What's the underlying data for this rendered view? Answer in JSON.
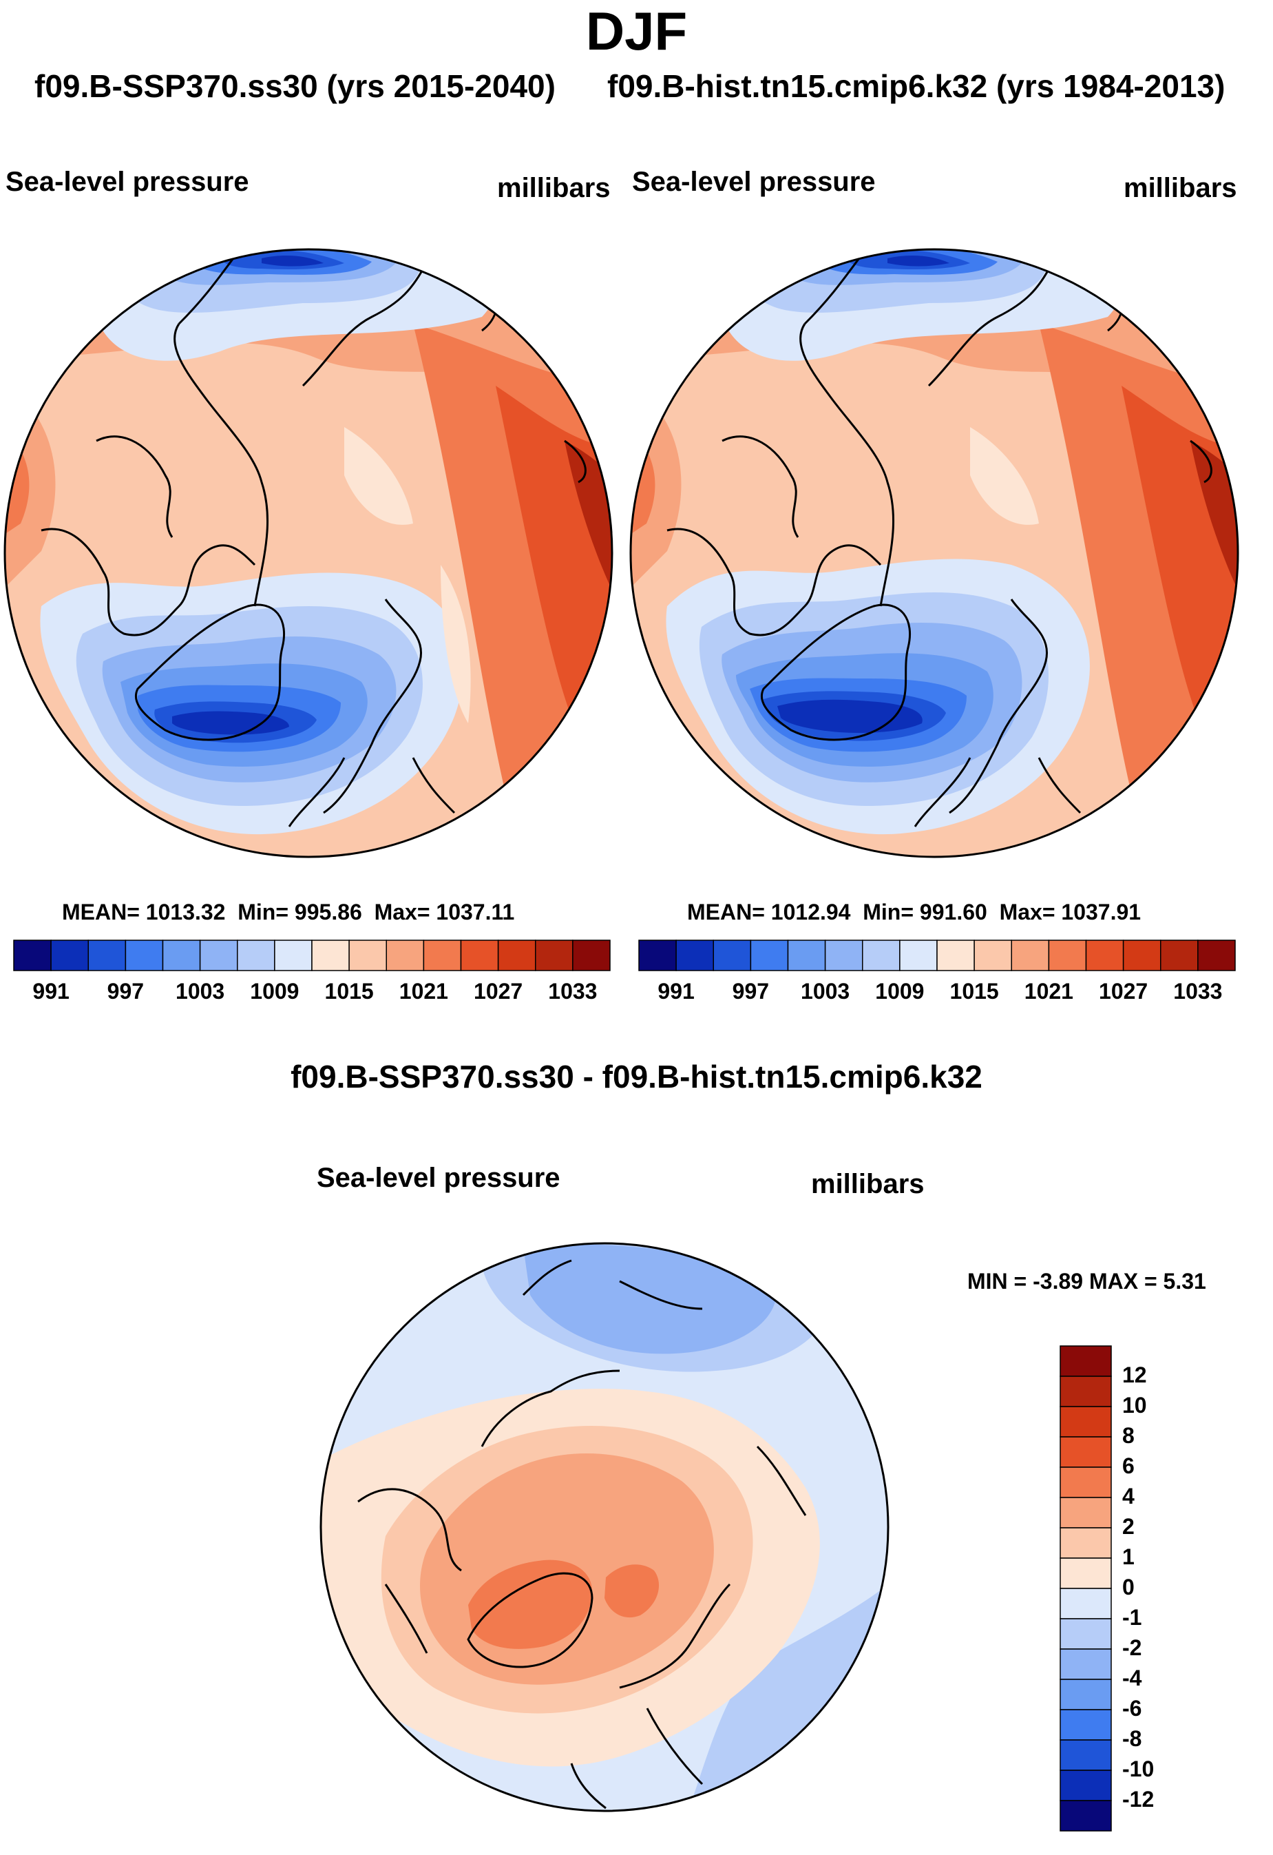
{
  "title": "DJF",
  "headers": {
    "left": "f09.B-SSP370.ss30 (yrs 2015-2040)",
    "right": "f09.B-hist.tn15.cmip6.k32 (yrs 1984-2013)"
  },
  "panels": [
    {
      "variable": "Sea-level pressure",
      "units": "millibars",
      "mean_label": "MEAN=",
      "mean": "1013.32",
      "min_label": "Min=",
      "min": "995.86",
      "max_label": "Max=",
      "max": "1037.11"
    },
    {
      "variable": "Sea-level pressure",
      "units": "millibars",
      "mean_label": "MEAN=",
      "mean": "1012.94",
      "min_label": "Min=",
      "min": "991.60",
      "max_label": "Max=",
      "max": "1037.91"
    }
  ],
  "colorbar_top": {
    "ticks": [
      "991",
      "997",
      "1003",
      "1009",
      "1015",
      "1021",
      "1027",
      "1033"
    ],
    "colors": [
      "#08087a",
      "#0c2fb8",
      "#1f55d8",
      "#3f7cf0",
      "#6a9cf2",
      "#8fb3f5",
      "#b6cdf8",
      "#dce8fb",
      "#fde5d4",
      "#fbc8ab",
      "#f7a47e",
      "#f27a4e",
      "#e65228",
      "#d33a15",
      "#b3260e",
      "#8a0a08"
    ]
  },
  "difference": {
    "title": "f09.B-SSP370.ss30 - f09.B-hist.tn15.cmip6.k32",
    "variable": "Sea-level pressure",
    "units": "millibars",
    "min_label": "MIN =",
    "min": "-3.89",
    "max_label": "MAX =",
    "max": "5.31"
  },
  "colorbar_diff": {
    "ticks": [
      "12",
      "10",
      "8",
      "6",
      "4",
      "2",
      "1",
      "0",
      "-1",
      "-2",
      "-4",
      "-6",
      "-8",
      "-10",
      "-12"
    ],
    "colors": [
      "#8a0a08",
      "#b3260e",
      "#d33a15",
      "#e65228",
      "#f27a4e",
      "#f7a47e",
      "#fbc8ab",
      "#fde5d4",
      "#dce8fb",
      "#b6cdf8",
      "#8fb3f5",
      "#6a9cf2",
      "#3f7cf0",
      "#1f55d8",
      "#0c2fb8",
      "#08087a"
    ]
  },
  "chart_data": [
    {
      "type": "heatmap",
      "title": "Sea-level pressure",
      "subtitle": "f09.B-SSP370.ss30 (yrs 2015-2040)",
      "units": "millibars",
      "mean": 1013.32,
      "min": 995.86,
      "max": 1037.11,
      "levels": [
        991,
        997,
        1003,
        1009,
        1015,
        1021,
        1027,
        1033
      ]
    },
    {
      "type": "heatmap",
      "title": "Sea-level pressure",
      "subtitle": "f09.B-hist.tn15.cmip6.k32 (yrs 1984-2013)",
      "units": "millibars",
      "mean": 1012.94,
      "min": 991.6,
      "max": 1037.91,
      "levels": [
        991,
        997,
        1003,
        1009,
        1015,
        1021,
        1027,
        1033
      ]
    },
    {
      "type": "heatmap",
      "title": "f09.B-SSP370.ss30 - f09.B-hist.tn15.cmip6.k32",
      "units": "millibars",
      "min": -3.89,
      "max": 5.31,
      "levels": [
        -12,
        -10,
        -8,
        -6,
        -4,
        -2,
        -1,
        0,
        1,
        2,
        4,
        6,
        8,
        10,
        12
      ]
    }
  ]
}
